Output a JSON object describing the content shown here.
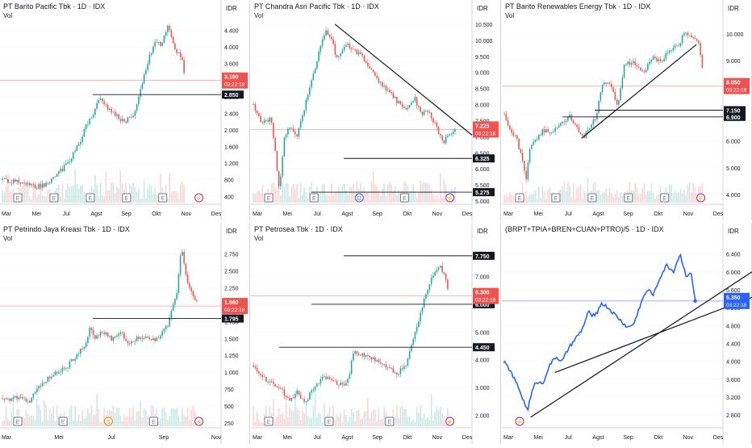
{
  "colors": {
    "up": "#26a69a",
    "down": "#ef5350",
    "candle_dark": "#131722",
    "line_blue": "#2962ff",
    "grid": "#e0e3eb",
    "price_line": "#f7a4a4",
    "label_dark": "#131722",
    "label_red": "#ef5350",
    "label_blue": "#2962ff",
    "event_E": "#787b86",
    "event_S": "#f57c00",
    "event_D": "#2962ff",
    "event_flash": "#9c27b0"
  },
  "panels": [
    {
      "id": "brpt",
      "title": "PT Barito Pacific Tbk · 1D · IDX",
      "vol_label": "Vol",
      "currency": "IDR",
      "type": "candle",
      "x_labels": [
        "Mar",
        "Mei",
        "Jul",
        "Agst",
        "Sep",
        "Okt",
        "Nov",
        "Des"
      ],
      "y_ticks": [
        "4.400",
        "4.000",
        "3.600",
        "3.200",
        "2.800",
        "2.400",
        "2.000",
        "1.600",
        "1.200",
        "800",
        "400"
      ],
      "y_range": [
        250,
        4700
      ],
      "last_price": "3.190",
      "countdown": "03:22:18",
      "levels": [
        "2.850"
      ],
      "events": [
        "E",
        "E",
        "E",
        "E",
        "E",
        "⚡"
      ],
      "path": [
        [
          0,
          800
        ],
        [
          0.05,
          760
        ],
        [
          0.1,
          720
        ],
        [
          0.15,
          620
        ],
        [
          0.2,
          700
        ],
        [
          0.25,
          920
        ],
        [
          0.3,
          1200
        ],
        [
          0.35,
          1650
        ],
        [
          0.38,
          2050
        ],
        [
          0.42,
          2450
        ],
        [
          0.45,
          2800
        ],
        [
          0.48,
          2550
        ],
        [
          0.52,
          2350
        ],
        [
          0.56,
          2200
        ],
        [
          0.6,
          2350
        ],
        [
          0.64,
          3100
        ],
        [
          0.67,
          3700
        ],
        [
          0.7,
          4100
        ],
        [
          0.73,
          4050
        ],
        [
          0.76,
          4480
        ],
        [
          0.79,
          3900
        ],
        [
          0.82,
          3800
        ],
        [
          0.84,
          3190
        ]
      ]
    },
    {
      "id": "tpia",
      "title": "PT Chandra Asri Pacific Tbk · 1D · IDX",
      "vol_label": "Vol",
      "currency": "IDR",
      "type": "candle",
      "x_labels": [
        "Mar",
        "Mei",
        "Jul",
        "Agst",
        "Sep",
        "Okt",
        "Nov",
        "Des"
      ],
      "y_ticks": [
        "10.500",
        "10.000",
        "9.500",
        "9.000",
        "8.500",
        "8.000",
        "7.500",
        "7.000",
        "6.500",
        "6.000",
        "5.500",
        "5.000"
      ],
      "y_range": [
        4950,
        10700
      ],
      "last_price": "7.225",
      "countdown": "03:22:18",
      "levels": [
        "6.325",
        "5.275"
      ],
      "events": [
        "E",
        "E",
        "D",
        "E",
        "⚡"
      ],
      "path": [
        [
          0,
          8000
        ],
        [
          0.04,
          7400
        ],
        [
          0.08,
          7600
        ],
        [
          0.1,
          6500
        ],
        [
          0.12,
          5300
        ],
        [
          0.14,
          7000
        ],
        [
          0.17,
          7300
        ],
        [
          0.2,
          7000
        ],
        [
          0.25,
          8300
        ],
        [
          0.3,
          9600
        ],
        [
          0.33,
          10300
        ],
        [
          0.36,
          10100
        ],
        [
          0.38,
          9400
        ],
        [
          0.42,
          9900
        ],
        [
          0.46,
          9700
        ],
        [
          0.5,
          9500
        ],
        [
          0.54,
          9100
        ],
        [
          0.58,
          8700
        ],
        [
          0.62,
          8400
        ],
        [
          0.66,
          8100
        ],
        [
          0.7,
          7800
        ],
        [
          0.74,
          8200
        ],
        [
          0.77,
          7700
        ],
        [
          0.8,
          7800
        ],
        [
          0.84,
          7300
        ],
        [
          0.87,
          6800
        ],
        [
          0.9,
          7100
        ],
        [
          0.93,
          7225
        ]
      ]
    },
    {
      "id": "bren",
      "title": "PT Barito Renewables Energy Tbk · 1D · IDX",
      "vol_label": "Vol",
      "currency": "IDR",
      "type": "candle",
      "x_labels": [
        "Mar",
        "Mei",
        "Jul",
        "Agst",
        "Sep",
        "Okt",
        "Nov",
        "Des"
      ],
      "y_ticks": [
        "10.000",
        "9.000",
        "8.000",
        "7.000",
        "6.000",
        "5.000",
        "4.000"
      ],
      "y_range": [
        3700,
        10600
      ],
      "last_price": "8.050",
      "countdown": "03:22:18",
      "levels": [
        "7.150",
        "6.900"
      ],
      "events": [
        "E",
        "E",
        "E",
        "E",
        "E",
        "⚡"
      ],
      "path": [
        [
          0,
          7000
        ],
        [
          0.03,
          6400
        ],
        [
          0.06,
          6000
        ],
        [
          0.08,
          5300
        ],
        [
          0.1,
          4600
        ],
        [
          0.12,
          5900
        ],
        [
          0.15,
          6100
        ],
        [
          0.18,
          6400
        ],
        [
          0.22,
          6300
        ],
        [
          0.26,
          6700
        ],
        [
          0.3,
          6900
        ],
        [
          0.33,
          6500
        ],
        [
          0.36,
          6100
        ],
        [
          0.39,
          6500
        ],
        [
          0.42,
          6900
        ],
        [
          0.45,
          8100
        ],
        [
          0.48,
          8200
        ],
        [
          0.52,
          7300
        ],
        [
          0.55,
          8900
        ],
        [
          0.6,
          8900
        ],
        [
          0.64,
          8600
        ],
        [
          0.68,
          9100
        ],
        [
          0.72,
          9000
        ],
        [
          0.76,
          9400
        ],
        [
          0.8,
          9600
        ],
        [
          0.83,
          10100
        ],
        [
          0.86,
          9800
        ],
        [
          0.89,
          9700
        ],
        [
          0.92,
          8050
        ]
      ]
    },
    {
      "id": "cuan",
      "title": "PT Petrindo Jaya Kreasi Tbk · 1D · IDX",
      "vol_label": "Vol",
      "currency": "IDR",
      "type": "candle",
      "x_labels": [
        "Mar",
        "Mei",
        "Jul",
        "Sep",
        "Nov"
      ],
      "y_ticks": [
        "2.750",
        "2.500",
        "2.250",
        "2.000",
        "1.750",
        "1.500",
        "1.250",
        "1.000",
        "750",
        "500",
        "250"
      ],
      "y_range": [
        200,
        2950
      ],
      "last_price": "1.980",
      "countdown": "03:22:18",
      "levels": [
        "1.795"
      ],
      "events": [
        "E",
        "E",
        "S",
        "E",
        "⚡"
      ],
      "path": [
        [
          0,
          620
        ],
        [
          0.04,
          580
        ],
        [
          0.08,
          650
        ],
        [
          0.12,
          530
        ],
        [
          0.15,
          720
        ],
        [
          0.2,
          880
        ],
        [
          0.25,
          1000
        ],
        [
          0.3,
          1100
        ],
        [
          0.34,
          1250
        ],
        [
          0.38,
          1400
        ],
        [
          0.4,
          1650
        ],
        [
          0.43,
          1500
        ],
        [
          0.46,
          1620
        ],
        [
          0.5,
          1480
        ],
        [
          0.54,
          1600
        ],
        [
          0.58,
          1420
        ],
        [
          0.62,
          1500
        ],
        [
          0.66,
          1530
        ],
        [
          0.7,
          1480
        ],
        [
          0.73,
          1560
        ],
        [
          0.76,
          1700
        ],
        [
          0.8,
          2200
        ],
        [
          0.82,
          2850
        ],
        [
          0.84,
          2450
        ],
        [
          0.86,
          2200
        ],
        [
          0.88,
          2100
        ],
        [
          0.9,
          1980
        ]
      ]
    },
    {
      "id": "ptro",
      "title": "PT Petrosea Tbk · 1D · IDX",
      "vol_label": "Vol",
      "currency": "IDR",
      "type": "candle",
      "x_labels": [
        "Mar",
        "Mei",
        "Jul",
        "Agst",
        "Sep",
        "Okt",
        "Nov",
        "Des"
      ],
      "y_ticks": [
        "7.000",
        "6.000",
        "5.000",
        "4.000",
        "3.000",
        "2.000"
      ],
      "y_range": [
        1600,
        8300
      ],
      "last_price": "6.300",
      "countdown": "03:22:18",
      "levels": [
        "7.750",
        "6.000",
        "4.450"
      ],
      "events": [
        "E",
        "E",
        "E",
        "⚡"
      ],
      "path": [
        [
          0,
          3800
        ],
        [
          0.05,
          3300
        ],
        [
          0.1,
          3100
        ],
        [
          0.13,
          2900
        ],
        [
          0.17,
          2500
        ],
        [
          0.2,
          2800
        ],
        [
          0.24,
          2500
        ],
        [
          0.28,
          3000
        ],
        [
          0.32,
          3400
        ],
        [
          0.36,
          3200
        ],
        [
          0.4,
          3100
        ],
        [
          0.43,
          3100
        ],
        [
          0.46,
          4300
        ],
        [
          0.5,
          4200
        ],
        [
          0.54,
          4100
        ],
        [
          0.58,
          3900
        ],
        [
          0.62,
          3700
        ],
        [
          0.66,
          3500
        ],
        [
          0.7,
          3800
        ],
        [
          0.73,
          4600
        ],
        [
          0.76,
          5500
        ],
        [
          0.79,
          6400
        ],
        [
          0.82,
          7000
        ],
        [
          0.85,
          7400
        ],
        [
          0.88,
          7100
        ],
        [
          0.9,
          6300
        ]
      ]
    },
    {
      "id": "combo",
      "title": "(BRPT+TPIA+BREN+CUAN+PTRO)/5 · 1D · IDX",
      "vol_label": "",
      "currency": "IDR",
      "type": "line",
      "x_labels": [
        "Mar",
        "Mei",
        "Jul",
        "Agst",
        "Sep",
        "Okt",
        "Nov",
        "Des"
      ],
      "y_ticks": [
        "6.400",
        "6.000",
        "5.600",
        "5.200",
        "4.800",
        "4.400",
        "4.000",
        "3.600",
        "3.200",
        "2.800"
      ],
      "y_range": [
        2550,
        6700
      ],
      "last_price": "5.350",
      "countdown": "03:22:18",
      "levels": [],
      "events": [
        "⚡"
      ],
      "path": [
        [
          0,
          4000
        ],
        [
          0.03,
          3800
        ],
        [
          0.05,
          3600
        ],
        [
          0.07,
          3400
        ],
        [
          0.09,
          3150
        ],
        [
          0.11,
          2900
        ],
        [
          0.13,
          3300
        ],
        [
          0.15,
          3550
        ],
        [
          0.18,
          3500
        ],
        [
          0.21,
          3900
        ],
        [
          0.24,
          4100
        ],
        [
          0.27,
          4000
        ],
        [
          0.3,
          4300
        ],
        [
          0.33,
          4500
        ],
        [
          0.36,
          4700
        ],
        [
          0.39,
          5100
        ],
        [
          0.42,
          5000
        ],
        [
          0.45,
          5300
        ],
        [
          0.48,
          5200
        ],
        [
          0.51,
          5050
        ],
        [
          0.54,
          4900
        ],
        [
          0.57,
          4750
        ],
        [
          0.6,
          4850
        ],
        [
          0.63,
          5300
        ],
        [
          0.66,
          5600
        ],
        [
          0.69,
          5500
        ],
        [
          0.72,
          5900
        ],
        [
          0.75,
          6150
        ],
        [
          0.78,
          6000
        ],
        [
          0.81,
          6400
        ],
        [
          0.84,
          5900
        ],
        [
          0.86,
          6000
        ],
        [
          0.88,
          5350
        ]
      ]
    }
  ]
}
